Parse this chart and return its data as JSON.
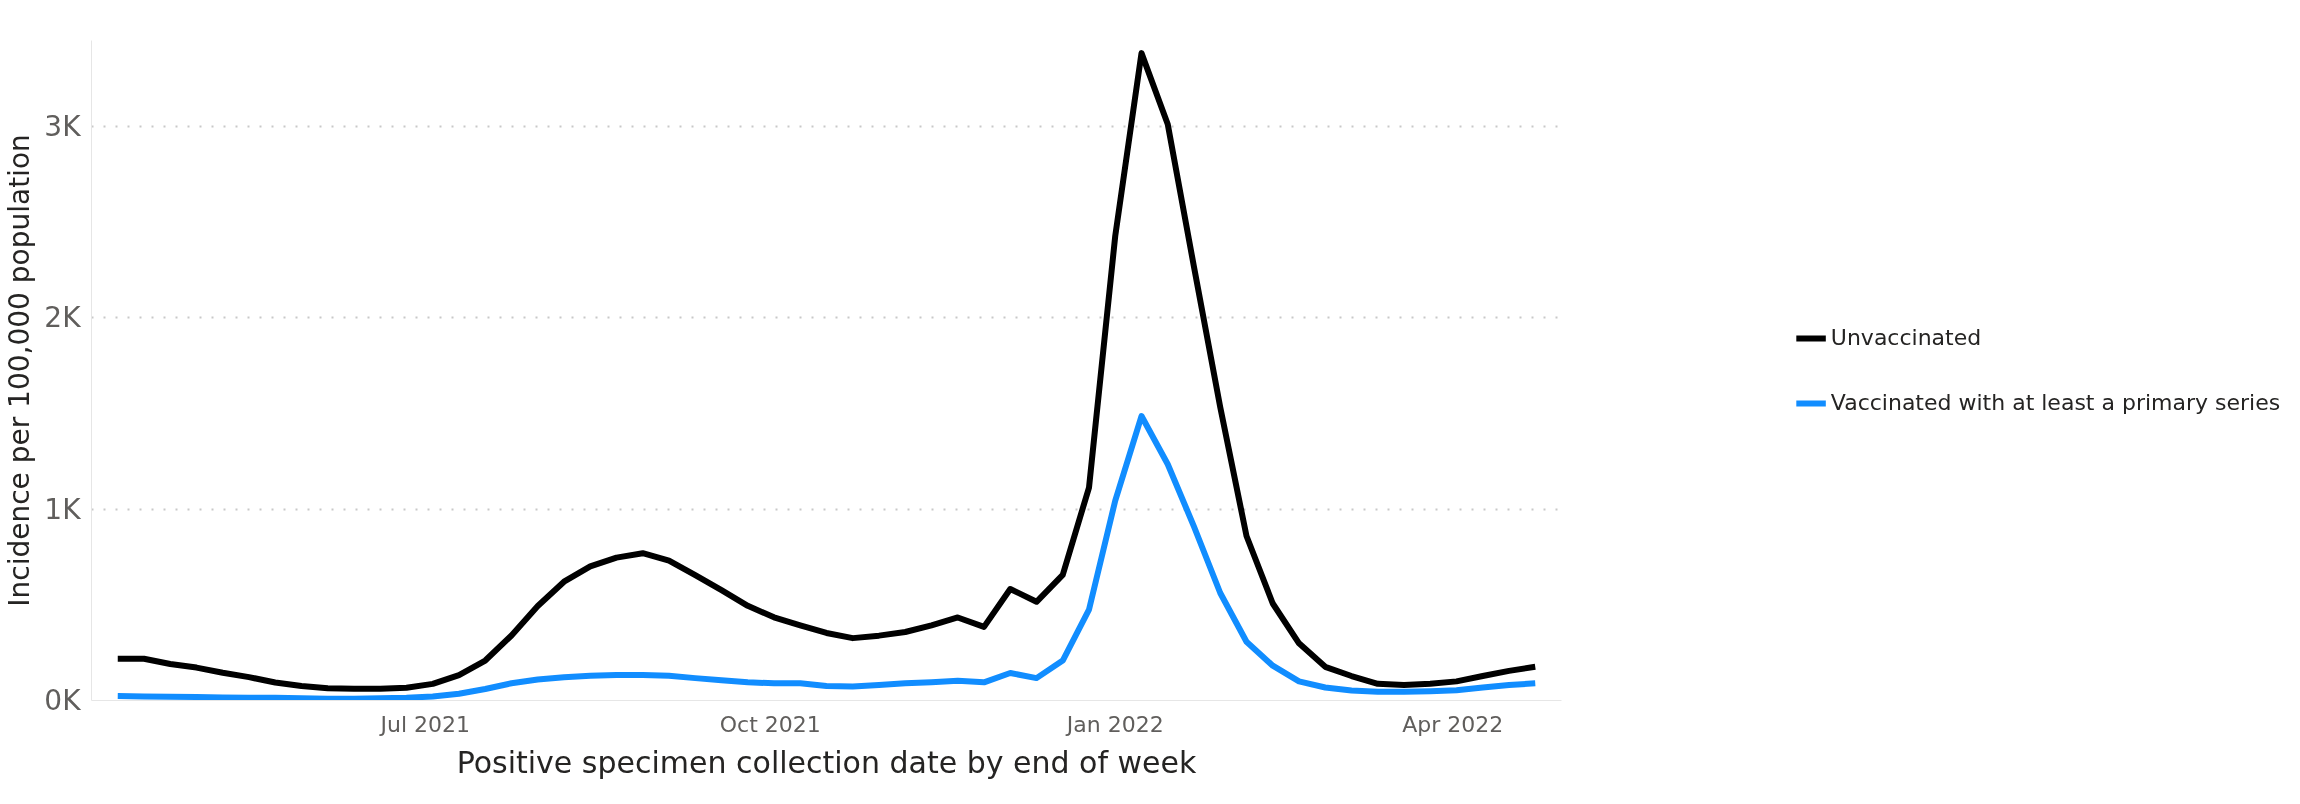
{
  "chart_data": {
    "type": "line",
    "xlabel": "Positive specimen collection date by end of week",
    "ylabel": "Incidence per 100,000 population",
    "x": [
      "2021-04-10",
      "2021-04-17",
      "2021-04-24",
      "2021-05-01",
      "2021-05-08",
      "2021-05-15",
      "2021-05-22",
      "2021-05-29",
      "2021-06-05",
      "2021-06-12",
      "2021-06-19",
      "2021-06-26",
      "2021-07-03",
      "2021-07-10",
      "2021-07-17",
      "2021-07-24",
      "2021-07-31",
      "2021-08-07",
      "2021-08-14",
      "2021-08-21",
      "2021-08-28",
      "2021-09-04",
      "2021-09-11",
      "2021-09-18",
      "2021-09-25",
      "2021-10-02",
      "2021-10-09",
      "2021-10-16",
      "2021-10-23",
      "2021-10-30",
      "2021-11-06",
      "2021-11-13",
      "2021-11-20",
      "2021-11-27",
      "2021-12-04",
      "2021-12-11",
      "2021-12-18",
      "2021-12-25",
      "2022-01-01",
      "2022-01-08",
      "2022-01-15",
      "2022-01-22",
      "2022-01-29",
      "2022-02-05",
      "2022-02-12",
      "2022-02-19",
      "2022-02-26",
      "2022-03-05",
      "2022-03-12",
      "2022-03-19",
      "2022-03-26",
      "2022-04-02",
      "2022-04-09",
      "2022-04-16",
      "2022-04-23"
    ],
    "series": [
      {
        "name": "Unvaccinated",
        "color": "#000000",
        "values": [
          218,
          218,
          191,
          172,
          145,
          122,
          94,
          76,
          64,
          62,
          62,
          67,
          87,
          133,
          209,
          340,
          494,
          621,
          701,
          747,
          770,
          731,
          655,
          577,
          495,
          435,
          393,
          353,
          326,
          339,
          358,
          393,
          434,
          385,
          583,
          516,
          657,
          1113,
          2429,
          3384,
          3012,
          2266,
          1533,
          860,
          507,
          299,
          176,
          128,
          87,
          81,
          87,
          100,
          128,
          155,
          176
        ]
      },
      {
        "name": "Vaccinated with at least a primary series",
        "color": "#118dff",
        "values": [
          23,
          21,
          20,
          18,
          16,
          14,
          14,
          12,
          9,
          9,
          12,
          14,
          21,
          35,
          60,
          90,
          110,
          122,
          129,
          133,
          133,
          129,
          117,
          106,
          95,
          90,
          90,
          76,
          73,
          81,
          90,
          95,
          103,
          95,
          144,
          117,
          209,
          475,
          1045,
          1487,
          1235,
          909,
          562,
          307,
          182,
          100,
          68,
          52,
          46,
          46,
          49,
          54,
          68,
          81,
          90
        ]
      }
    ],
    "xlim": [
      "2021-04-03",
      "2022-04-30"
    ],
    "xticks": [
      {
        "value": "2021-07-01",
        "label": "Jul 2021"
      },
      {
        "value": "2021-10-01",
        "label": "Oct 2021"
      },
      {
        "value": "2022-01-01",
        "label": "Jan 2022"
      },
      {
        "value": "2022-04-01",
        "label": "Apr 2022"
      }
    ],
    "ylim": [
      0,
      3450
    ],
    "yticks": [
      {
        "value": 0,
        "label": "0K"
      },
      {
        "value": 1000,
        "label": "1K"
      },
      {
        "value": 2000,
        "label": "2K"
      },
      {
        "value": 3000,
        "label": "3K"
      }
    ],
    "grid": "y",
    "legend": "right",
    "marker": "none",
    "line_style": "solid"
  }
}
